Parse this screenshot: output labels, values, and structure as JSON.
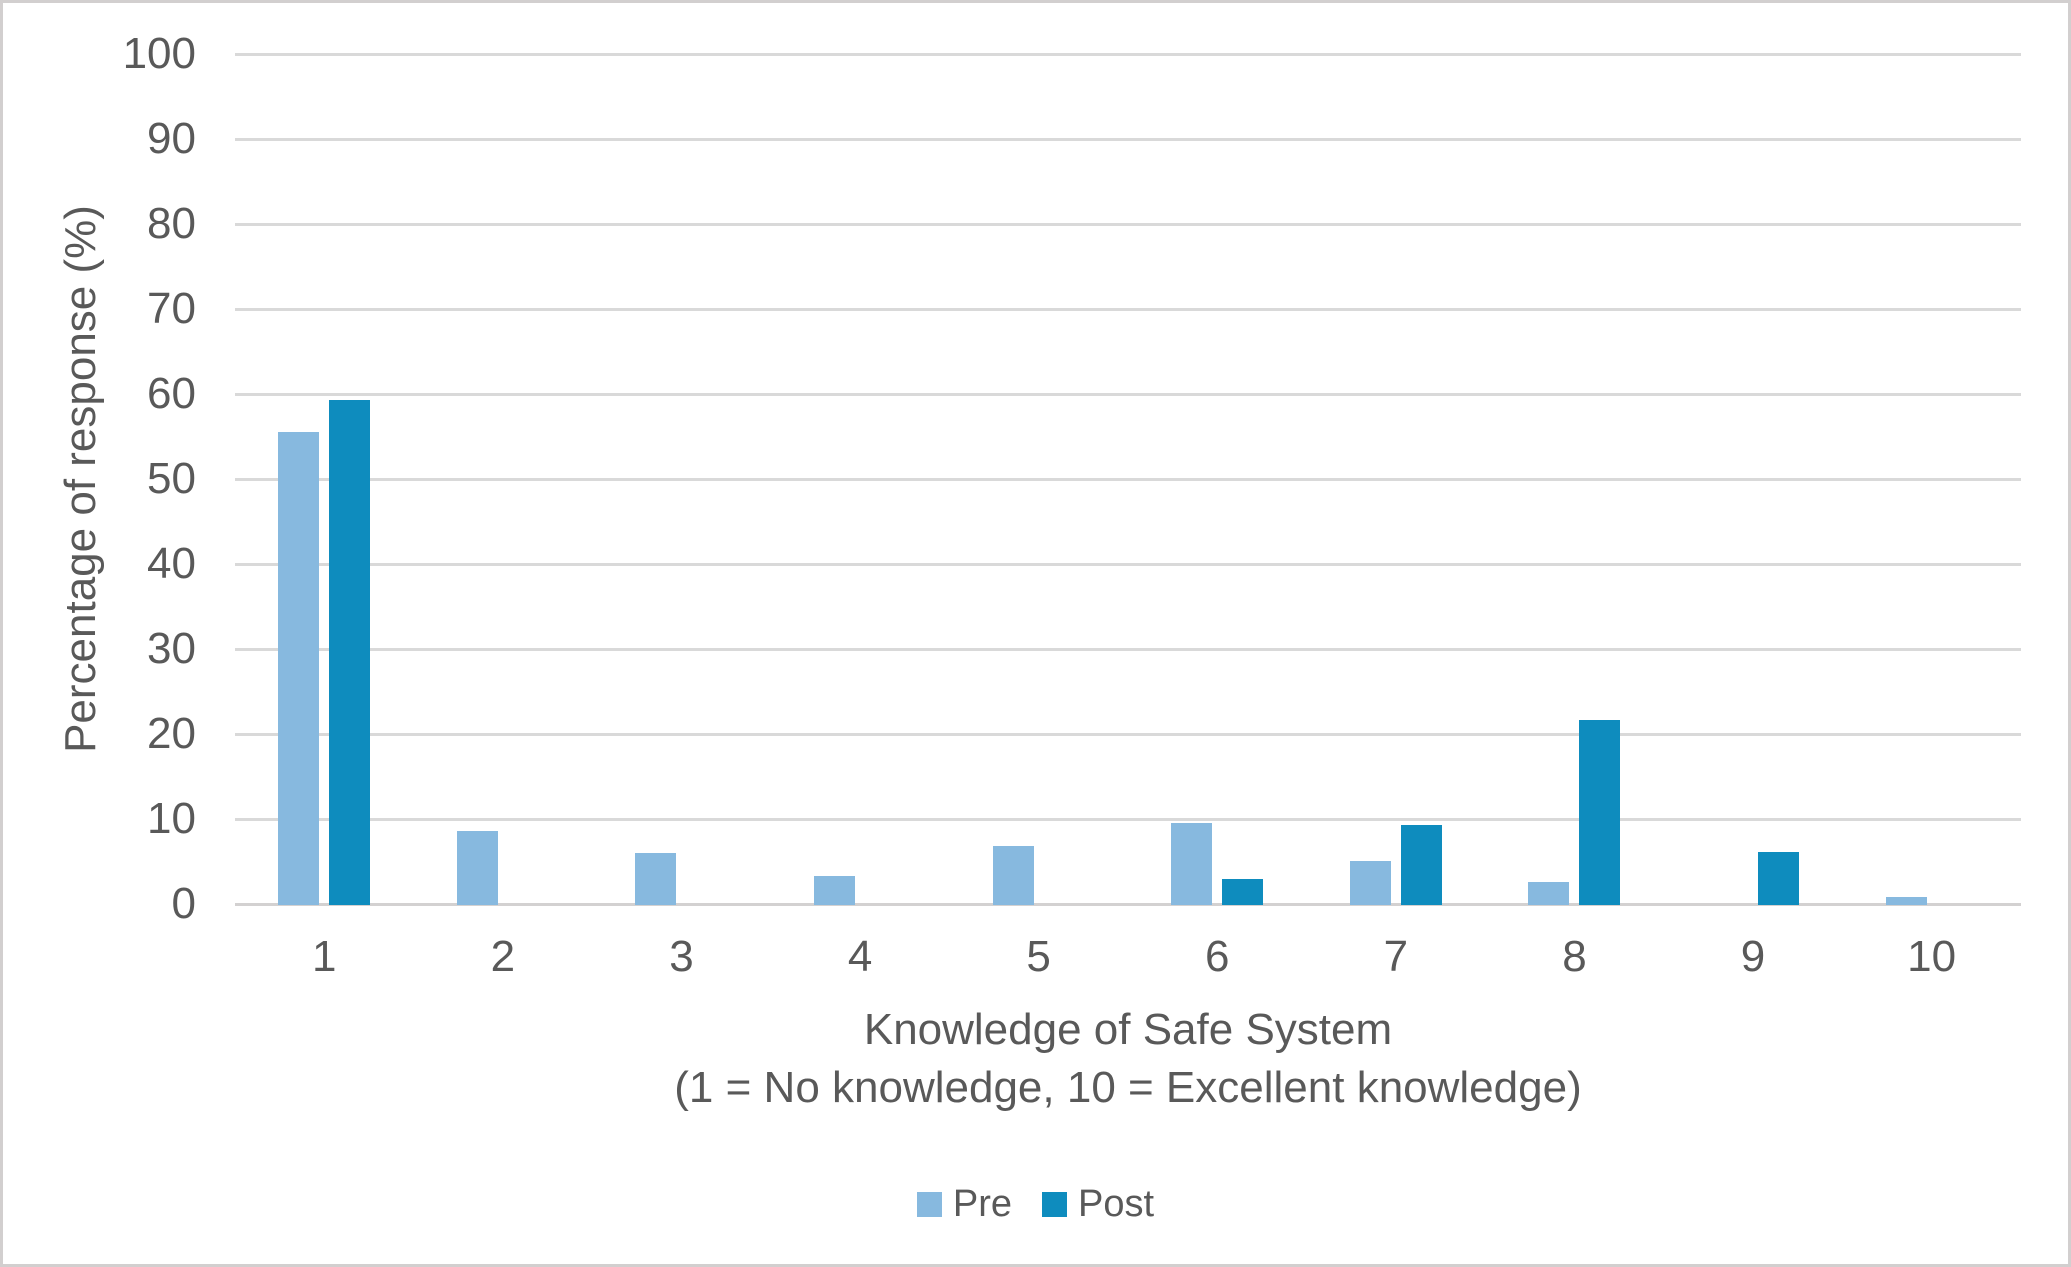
{
  "chart_data": {
    "type": "bar",
    "title": "",
    "categories": [
      "1",
      "2",
      "3",
      "4",
      "5",
      "6",
      "7",
      "8",
      "9",
      "10"
    ],
    "series": [
      {
        "name": "Pre",
        "color": "#87b9df",
        "values": [
          55.7,
          8.7,
          6.1,
          3.4,
          7.0,
          9.6,
          5.2,
          2.7,
          0,
          0.9
        ]
      },
      {
        "name": "Post",
        "color": "#0e8cbe",
        "values": [
          59.4,
          0,
          0,
          0,
          0,
          3.1,
          9.4,
          21.8,
          6.2,
          0
        ]
      }
    ],
    "xlabel_line1": "Knowledge of Safe System",
    "xlabel_line2": "(1 = No knowledge, 10 = Excellent knowledge)",
    "ylabel": "Percentage of response (%)",
    "ylim": [
      0,
      100
    ],
    "yticks": [
      0,
      10,
      20,
      30,
      40,
      50,
      60,
      70,
      80,
      90,
      100
    ],
    "grid": true,
    "legend_position": "bottom-center",
    "colors": {
      "gridline": "#d9d9d9",
      "axis_line": "#d3d1d1",
      "text": "#595959",
      "border": "#d2cfcf",
      "background": "#ffffff"
    }
  },
  "y_axis": {
    "title": "Percentage of response (%)"
  },
  "x_axis": {
    "title_line1": "Knowledge of Safe System",
    "title_line2": "(1 = No knowledge, 10 = Excellent knowledge)"
  },
  "legend": {
    "pre_label": "Pre",
    "post_label": "Post"
  }
}
